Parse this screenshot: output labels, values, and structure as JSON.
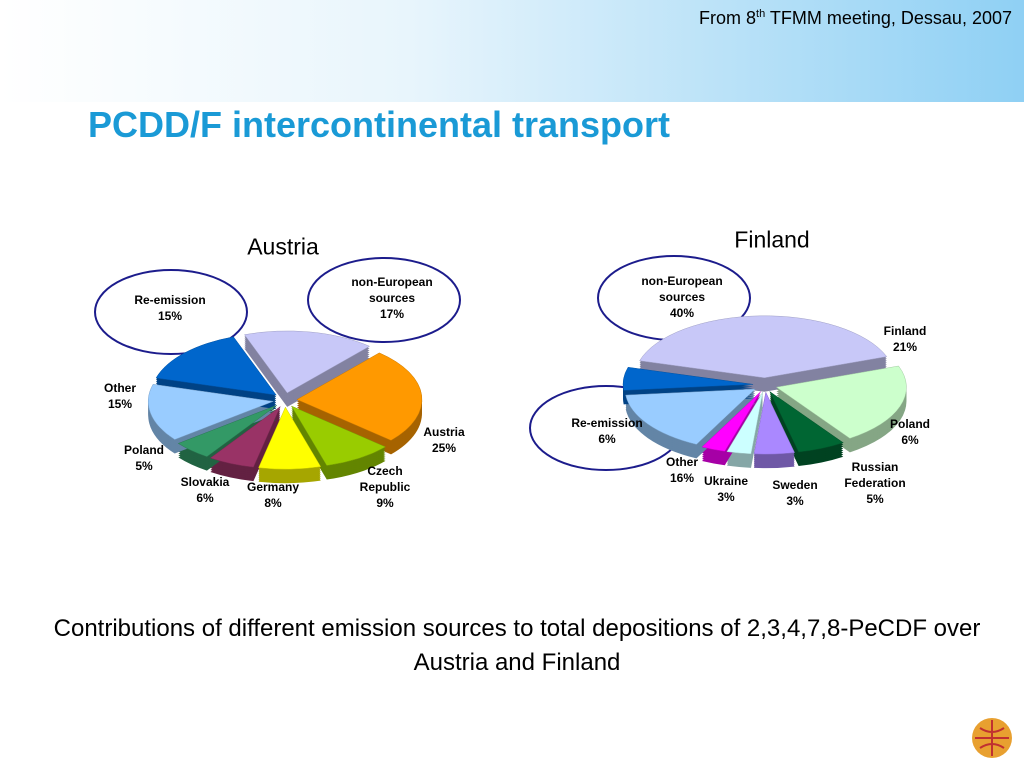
{
  "header": {
    "prefix": "From 8",
    "sup": "th",
    "suffix": " TFMM meeting, Dessau, 2007"
  },
  "title": "PCDD/F intercontinental transport",
  "caption": "Contributions of different emission sources to total depositions of 2,3,4,7,8-PeCDF over Austria and Finland",
  "chart_data": [
    {
      "type": "pie",
      "title": "Austria",
      "categories": [
        "non-European sources",
        "Austria",
        "Czech Republic",
        "Germany",
        "Slovakia",
        "Poland",
        "Other",
        "Re-emission"
      ],
      "values": [
        17,
        25,
        9,
        8,
        6,
        5,
        15,
        15
      ],
      "value_labels": [
        "17%",
        "25%",
        "9%",
        "8%",
        "6%",
        "5%",
        "15%",
        "15%"
      ],
      "colors": [
        "#c8c8f8",
        "#ff9900",
        "#99cc00",
        "#ffff00",
        "#993366",
        "#339966",
        "#99ccff",
        "#0066cc"
      ]
    },
    {
      "type": "pie",
      "title": "Finland",
      "categories": [
        "non-European sources",
        "Finland",
        "Poland",
        "Russian Federation",
        "Sweden",
        "Ukraine",
        "Other",
        "Re-emission"
      ],
      "values": [
        40,
        21,
        6,
        5,
        3,
        3,
        16,
        6
      ],
      "value_labels": [
        "40%",
        "21%",
        "6%",
        "5%",
        "3%",
        "3%",
        "16%",
        "6%"
      ],
      "colors": [
        "#c8c8f8",
        "#ccffcc",
        "#006633",
        "#aa88ff",
        "#ccffff",
        "#ff00ff",
        "#99ccff",
        "#0066cc"
      ]
    }
  ]
}
